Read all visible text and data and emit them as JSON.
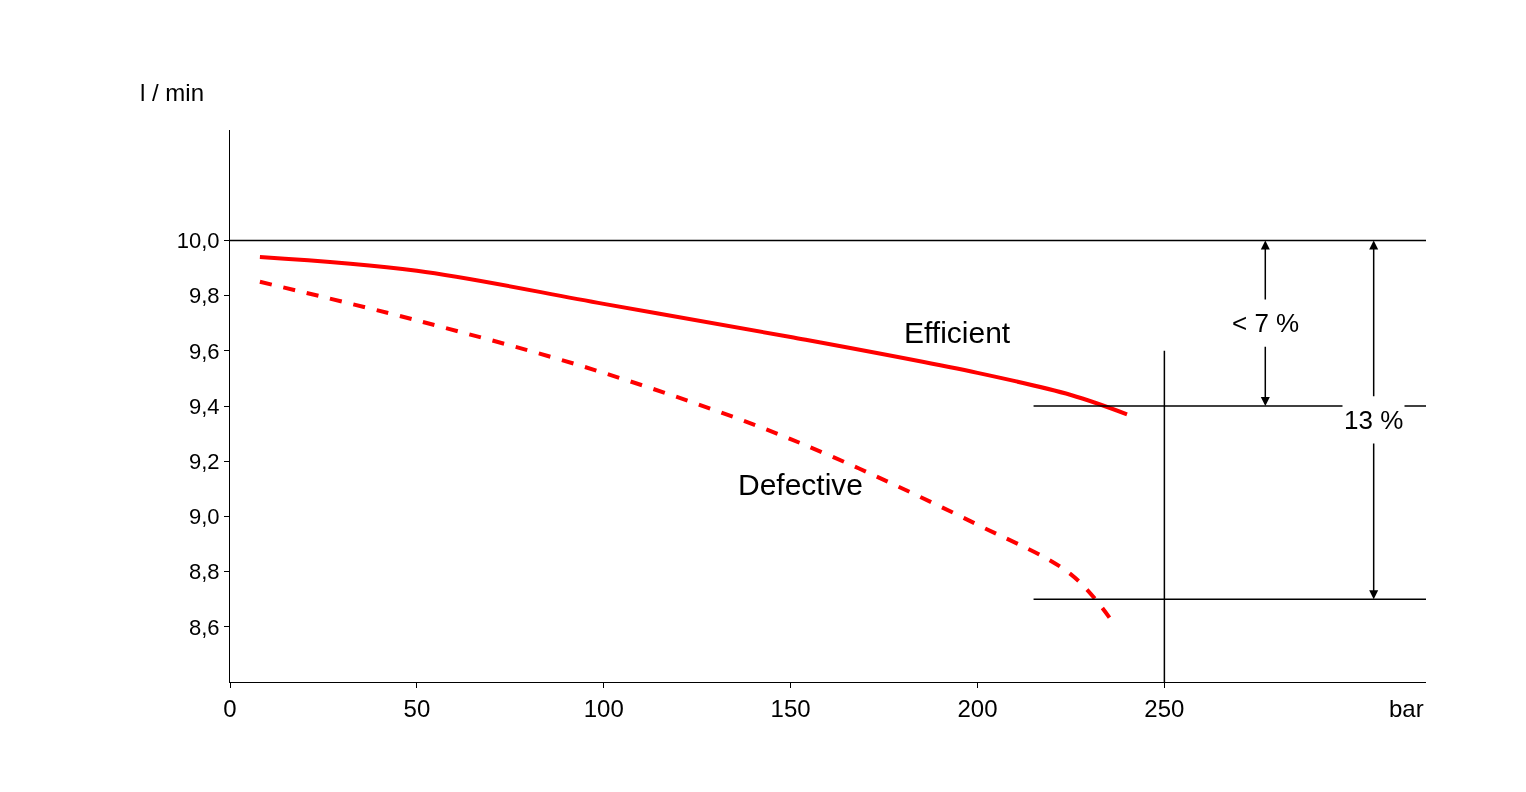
{
  "chart_data": {
    "type": "line",
    "xlabel": "bar",
    "ylabel": "l / min",
    "series": [
      {
        "name": "Efficient",
        "color": "#ff0000",
        "line_style": "solid",
        "x": [
          8,
          50,
          100,
          150,
          200,
          225,
          240
        ],
        "values": [
          9.94,
          9.89,
          9.77,
          9.65,
          9.52,
          9.44,
          9.37
        ]
      },
      {
        "name": "Defective",
        "color": "#ff0000",
        "line_style": "dashed",
        "x": [
          8,
          50,
          100,
          150,
          200,
          225,
          236
        ],
        "values": [
          9.85,
          9.71,
          9.52,
          9.28,
          8.97,
          8.79,
          8.62
        ]
      }
    ],
    "xlim": [
      0,
      320
    ],
    "xticks": [
      0,
      50,
      100,
      150,
      200,
      250
    ],
    "ylim": [
      8.4,
      10.4
    ],
    "yticks": [
      {
        "value": 8.6,
        "label": "8,6"
      },
      {
        "value": 8.8,
        "label": "8,8"
      },
      {
        "value": 9.0,
        "label": "9,0"
      },
      {
        "value": 9.2,
        "label": "9,2"
      },
      {
        "value": 9.4,
        "label": "9,4"
      },
      {
        "value": 9.6,
        "label": "9,6"
      },
      {
        "value": 9.8,
        "label": "9,8"
      },
      {
        "value": 10.0,
        "label": "10,0"
      }
    ],
    "ref_lines": [
      {
        "axis": "y",
        "value": 10.0,
        "color": "#000000"
      },
      {
        "axis": "y",
        "value": 9.4,
        "color": "#000000"
      },
      {
        "axis": "y",
        "value": 8.7,
        "color": "#000000"
      },
      {
        "axis": "x",
        "value": 250,
        "color": "#000000"
      }
    ],
    "annotations": [
      {
        "text": "< 7 %",
        "x": 277,
        "y": 9.4
      },
      {
        "text": "13 %",
        "x": 306,
        "y": 8.7
      }
    ],
    "legend": false,
    "marker": "none"
  }
}
